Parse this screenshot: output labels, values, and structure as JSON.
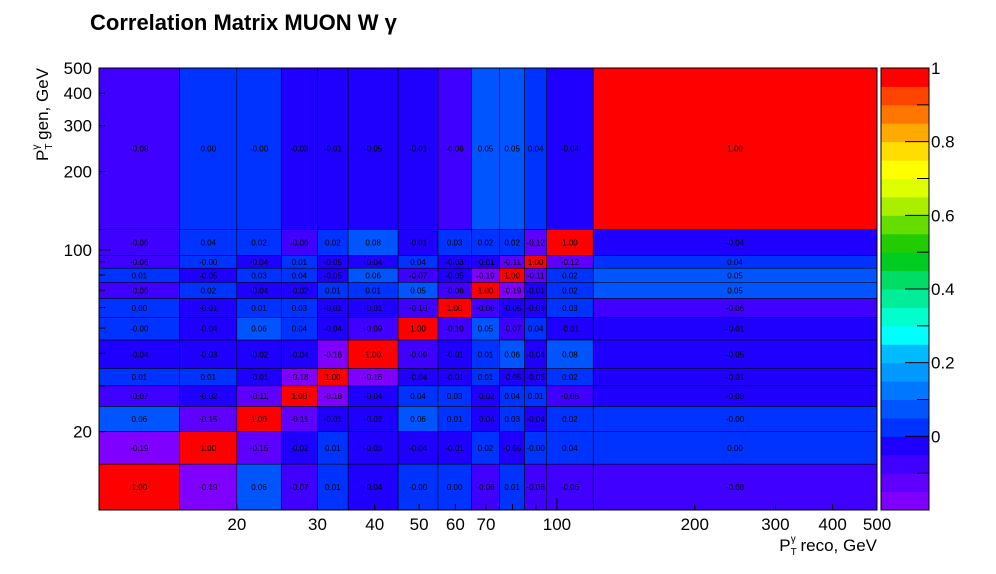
{
  "title": "Correlation Matrix MUON W  γ",
  "chart_data": {
    "type": "heatmap",
    "title": "Correlation Matrix MUON W  γ",
    "xlabel": "reco, GeV",
    "ylabel": "gen, GeV",
    "axis_symbol": {
      "main": "P",
      "sub": "T",
      "sup": "γ"
    },
    "x_scale": "log",
    "y_scale": "log",
    "xlim": [
      10,
      500
    ],
    "ylim": [
      10,
      500
    ],
    "x_ticks": [
      20,
      30,
      40,
      50,
      60,
      70,
      100,
      200,
      300,
      400,
      500
    ],
    "y_ticks": [
      20,
      100,
      200,
      300,
      400,
      500
    ],
    "bin_edges": [
      10,
      15,
      20,
      25,
      30,
      35,
      45,
      55,
      65,
      75,
      85,
      95,
      120,
      500
    ],
    "zlim": [
      -0.2,
      1
    ],
    "z_ticks": [
      0,
      0.2,
      0.4,
      0.6,
      0.8,
      1
    ],
    "grid": false,
    "colorbar": "right",
    "rows_top_to_bottom": [
      [
        "-0.08",
        "0.00",
        "-0.00",
        "-0.03",
        "-0.01",
        "-0.05",
        "-0.01",
        "-0.06",
        "0.05",
        "0.05",
        "0.04",
        "-0.04",
        "1.00"
      ],
      [
        "-0.06",
        "0.04",
        "0.02",
        "-0.06",
        "0.02",
        "0.08",
        "-0.01",
        "0.03",
        "0.02",
        "0.02",
        "-0.12",
        "1.00",
        "-0.04"
      ],
      [
        "-0.06",
        "-0.00",
        "-0.04",
        "0.01",
        "-0.05",
        "-0.04",
        "0.04",
        "-0.03",
        "-0.01",
        "-0.11",
        "1.00",
        "-0.12",
        "0.04"
      ],
      [
        "0.01",
        "-0.05",
        "0.03",
        "0.04",
        "-0.05",
        "0.06",
        "-0.07",
        "-0.05",
        "-0.19",
        "1.00",
        "-0.11",
        "0.02",
        "0.05"
      ],
      [
        "-0.06",
        "0.02",
        "-0.04",
        "-0.02",
        "0.01",
        "0.01",
        "0.05",
        "-0.06",
        "1.00",
        "-0.19",
        "-0.01",
        "0.02",
        "0.05"
      ],
      [
        "0.00",
        "-0.01",
        "0.01",
        "0.03",
        "-0.01",
        "-0.01",
        "-0.10",
        "1.00",
        "-0.06",
        "-0.05",
        "-0.03",
        "0.03",
        "-0.06"
      ],
      [
        "-0.00",
        "-0.04",
        "0.06",
        "0.04",
        "-0.04",
        "-0.09",
        "1.00",
        "-0.10",
        "0.05",
        "-0.07",
        "0.04",
        "-0.01",
        "-0.01"
      ],
      [
        "-0.04",
        "-0.03",
        "-0.02",
        "-0.04",
        "-0.16",
        "1.00",
        "-0.09",
        "-0.01",
        "0.01",
        "0.06",
        "-0.04",
        "0.08",
        "-0.05"
      ],
      [
        "0.01",
        "0.01",
        "-0.01",
        "-0.18",
        "1.00",
        "-0.16",
        "-0.04",
        "-0.01",
        "0.01",
        "-0.05",
        "-0.05",
        "0.02",
        "-0.01"
      ],
      [
        "-0.07",
        "-0.02",
        "-0.11",
        "1.00",
        "-0.18",
        "-0.04",
        "0.04",
        "0.03",
        "-0.02",
        "0.04",
        "0.01",
        "-0.06",
        "-0.03"
      ],
      [
        "0.06",
        "-0.15",
        "1.00",
        "-0.11",
        "-0.01",
        "-0.02",
        "0.06",
        "0.01",
        "-0.04",
        "0.03",
        "-0.04",
        "0.02",
        "-0.00"
      ],
      [
        "-0.19",
        "1.00",
        "-0.15",
        "-0.02",
        "0.01",
        "-0.03",
        "-0.04",
        "-0.01",
        "0.02",
        "-0.05",
        "-0.00",
        "0.04",
        "0.00"
      ],
      [
        "1.00",
        "-0.19",
        "0.06",
        "-0.07",
        "0.01",
        "-0.04",
        "-0.00",
        "0.00",
        "-0.06",
        "0.01",
        "-0.06",
        "-0.06",
        "-0.08"
      ]
    ],
    "palette": [
      "#7f00ff",
      "#5f00ff",
      "#3f00ff",
      "#1f00ff",
      "#0033ff",
      "#0055ff",
      "#0077ff",
      "#0099ff",
      "#00bbff",
      "#00ffff",
      "#00ffcc",
      "#00ee99",
      "#00dd66",
      "#00cc22",
      "#22cc00",
      "#66dd00",
      "#aaee00",
      "#ddff00",
      "#ffff00",
      "#ffdd00",
      "#ffaa00",
      "#ff7700",
      "#ff4400",
      "#ff0000"
    ]
  }
}
